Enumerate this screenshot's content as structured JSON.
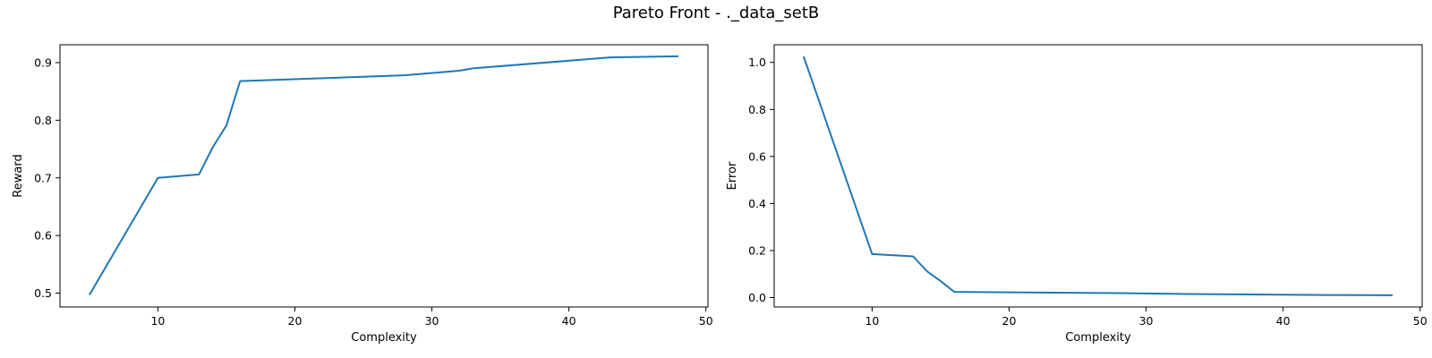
{
  "figure": {
    "suptitle": "Pareto Front - ._data_setB"
  },
  "chart_data": [
    {
      "type": "line",
      "xlabel": "Complexity",
      "ylabel": "Reward",
      "xlim": [
        2.85,
        50.15
      ],
      "ylim": [
        0.476,
        0.931
      ],
      "xticks": [
        10,
        20,
        30,
        40,
        50
      ],
      "yticks": [
        0.5,
        0.6,
        0.7,
        0.8,
        0.9
      ],
      "ytick_labels": [
        "0.5",
        "0.6",
        "0.7",
        "0.8",
        "0.9"
      ],
      "grid": false,
      "series": [
        {
          "color": "#1f77b4",
          "x": [
            5,
            10,
            13,
            14,
            15,
            16,
            28,
            32,
            33,
            43,
            48
          ],
          "y": [
            0.497,
            0.7,
            0.706,
            0.753,
            0.791,
            0.868,
            0.878,
            0.886,
            0.89,
            0.909,
            0.911
          ]
        }
      ]
    },
    {
      "type": "line",
      "xlabel": "Complexity",
      "ylabel": "Error",
      "xlim": [
        2.85,
        50.15
      ],
      "ylim": [
        -0.04,
        1.075
      ],
      "xticks": [
        10,
        20,
        30,
        40,
        50
      ],
      "yticks": [
        0.0,
        0.2,
        0.4,
        0.6,
        0.8,
        1.0
      ],
      "ytick_labels": [
        "0.0",
        "0.2",
        "0.4",
        "0.6",
        "0.8",
        "1.0"
      ],
      "grid": false,
      "series": [
        {
          "color": "#1f77b4",
          "x": [
            5,
            10,
            13,
            14,
            15,
            16,
            28,
            32,
            33,
            43,
            48
          ],
          "y": [
            1.025,
            0.185,
            0.175,
            0.112,
            0.07,
            0.024,
            0.019,
            0.016,
            0.015,
            0.011,
            0.01
          ]
        }
      ]
    }
  ]
}
